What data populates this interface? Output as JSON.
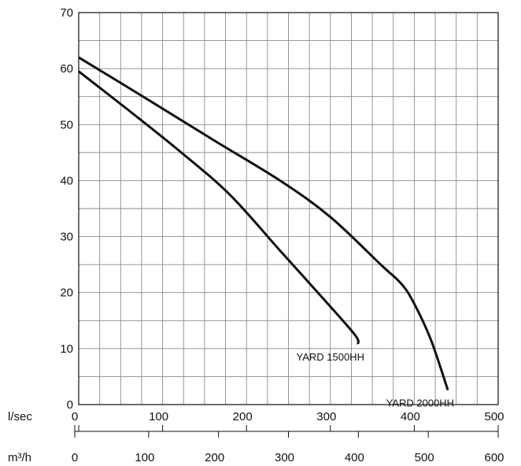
{
  "chart_data": {
    "type": "line",
    "title": "",
    "xlabel": "l/sec",
    "ylabel": "",
    "x2label": "m³/h",
    "xlim": [
      0,
      500
    ],
    "ylim": [
      0,
      70
    ],
    "x2lim": [
      0,
      600
    ],
    "xticks": [
      0,
      100,
      200,
      300,
      400,
      500
    ],
    "x2ticks": [
      0,
      100,
      200,
      300,
      400,
      500,
      600
    ],
    "yticks": [
      0,
      10,
      20,
      30,
      40,
      50,
      60,
      70
    ],
    "grid": true,
    "legend": "none",
    "series": [
      {
        "name": "YARD 1500HH",
        "color": "#111111",
        "points": [
          [
            0,
            59.5
          ],
          [
            60,
            52.5
          ],
          [
            120,
            45.3
          ],
          [
            180,
            37.5
          ],
          [
            240,
            27.5
          ],
          [
            300,
            17.5
          ],
          [
            330,
            12.3
          ],
          [
            333,
            10.8
          ]
        ]
      },
      {
        "name": "YARD 2000HH",
        "color": "#111111",
        "points": [
          [
            0,
            62
          ],
          [
            80,
            54.7
          ],
          [
            160,
            47.3
          ],
          [
            240,
            40
          ],
          [
            300,
            33.5
          ],
          [
            360,
            25
          ],
          [
            385,
            21.5
          ],
          [
            400,
            18
          ],
          [
            420,
            11.5
          ],
          [
            440,
            2.6
          ]
        ]
      }
    ]
  }
}
